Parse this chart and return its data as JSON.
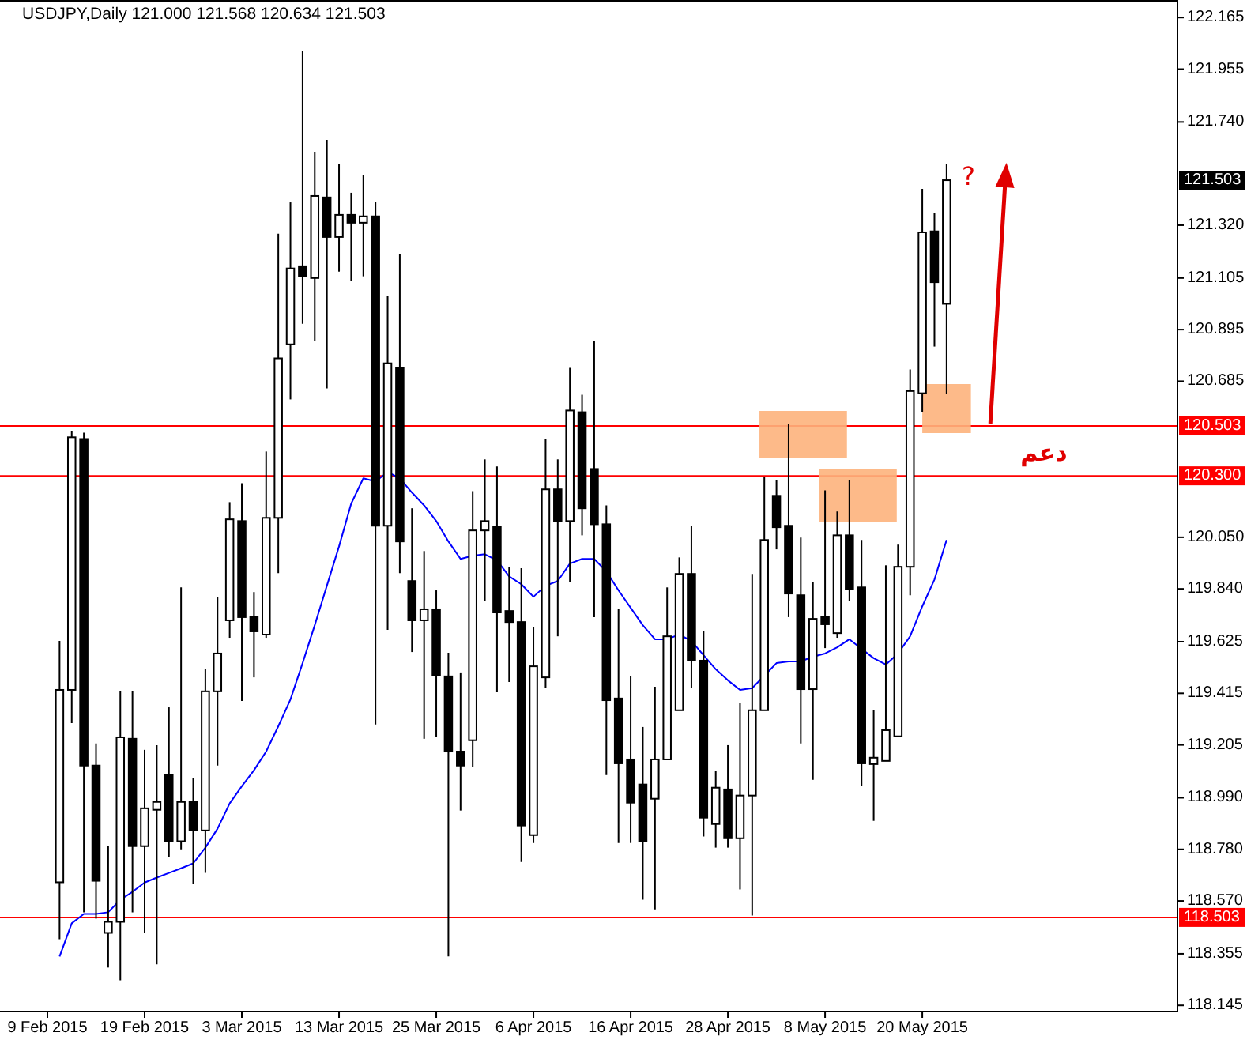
{
  "chart_data": {
    "type": "candlestick",
    "title": "USDJPY,Daily 121.000 121.568 120.634 121.503",
    "categories": [
      "9 Feb 2015",
      null,
      null,
      null,
      null,
      null,
      null,
      null,
      "19 Feb 2015",
      null,
      null,
      null,
      null,
      null,
      null,
      null,
      "3 Mar 2015",
      null,
      null,
      null,
      null,
      null,
      null,
      null,
      "13 Mar 2015",
      null,
      null,
      null,
      null,
      null,
      null,
      null,
      "25 Mar 2015",
      null,
      null,
      null,
      null,
      null,
      null,
      null,
      "6 Apr 2015",
      null,
      null,
      null,
      null,
      null,
      null,
      null,
      "16 Apr 2015",
      null,
      null,
      null,
      null,
      null,
      null,
      null,
      "28 Apr 2015",
      null,
      null,
      null,
      null,
      null,
      null,
      null,
      "8 May 2015",
      null,
      null,
      null,
      null,
      null,
      null,
      null,
      "20 May 2015",
      null,
      null
    ],
    "ohlc": [
      null,
      [
        118.646,
        119.628,
        118.414,
        119.429
      ],
      [
        119.429,
        120.482,
        119.294,
        120.457
      ],
      [
        120.45,
        120.476,
        118.524,
        119.121
      ],
      [
        119.121,
        119.211,
        118.498,
        118.652
      ],
      [
        118.44,
        118.793,
        118.299,
        118.485
      ],
      [
        118.485,
        119.423,
        118.247,
        119.236
      ],
      [
        119.23,
        119.423,
        118.524,
        118.793
      ],
      [
        118.793,
        119.185,
        118.44,
        118.947
      ],
      [
        118.941,
        119.204,
        118.312,
        118.973
      ],
      [
        119.082,
        119.358,
        118.748,
        118.813
      ],
      [
        118.813,
        119.846,
        118.78,
        118.973
      ],
      [
        118.973,
        119.069,
        118.639,
        118.857
      ],
      [
        118.857,
        119.513,
        118.684,
        119.423
      ],
      [
        119.423,
        119.808,
        119.121,
        119.577
      ],
      [
        119.712,
        120.193,
        119.641,
        120.123
      ],
      [
        120.116,
        120.27,
        119.384,
        119.725
      ],
      [
        119.725,
        119.827,
        119.48,
        119.667
      ],
      [
        119.654,
        120.399,
        119.641,
        120.129
      ],
      [
        120.129,
        121.285,
        119.904,
        120.778
      ],
      [
        120.835,
        121.413,
        120.611,
        121.144
      ],
      [
        121.153,
        122.03,
        120.919,
        121.112
      ],
      [
        121.105,
        121.619,
        120.848,
        121.439
      ],
      [
        121.433,
        121.667,
        120.656,
        121.272
      ],
      [
        121.272,
        121.568,
        121.131,
        121.362
      ],
      [
        121.362,
        121.452,
        121.092,
        121.33
      ],
      [
        121.33,
        121.523,
        121.112,
        121.356
      ],
      [
        121.356,
        121.413,
        119.288,
        120.097
      ],
      [
        120.097,
        121.034,
        119.673,
        120.758
      ],
      [
        120.739,
        121.202,
        119.904,
        120.033
      ],
      [
        119.872,
        120.168,
        119.583,
        119.712
      ],
      [
        119.712,
        119.994,
        119.23,
        119.757
      ],
      [
        119.757,
        119.834,
        119.236,
        119.487
      ],
      [
        119.484,
        119.58,
        118.344,
        119.178
      ],
      [
        119.178,
        119.5,
        118.938,
        119.121
      ],
      [
        119.224,
        120.238,
        119.114,
        120.078
      ],
      [
        120.078,
        120.367,
        119.789,
        120.116
      ],
      [
        120.094,
        120.338,
        119.419,
        119.744
      ],
      [
        119.75,
        119.93,
        119.461,
        119.705
      ],
      [
        119.705,
        119.924,
        118.729,
        118.877
      ],
      [
        118.838,
        119.686,
        118.806,
        119.525
      ],
      [
        119.48,
        120.45,
        119.436,
        120.245
      ],
      [
        120.245,
        120.367,
        119.647,
        120.116
      ],
      [
        120.116,
        120.739,
        119.866,
        120.566
      ],
      [
        120.559,
        120.63,
        120.058,
        120.168
      ],
      [
        120.328,
        120.848,
        119.725,
        120.103
      ],
      [
        120.103,
        120.18,
        119.082,
        119.387
      ],
      [
        119.394,
        119.757,
        118.806,
        119.13
      ],
      [
        119.146,
        119.484,
        118.806,
        118.97
      ],
      [
        119.044,
        119.278,
        118.575,
        118.813
      ],
      [
        118.986,
        119.442,
        118.536,
        119.146
      ],
      [
        119.146,
        119.846,
        119.146,
        119.647
      ],
      [
        119.346,
        119.968,
        119.346,
        119.901
      ],
      [
        119.901,
        120.097,
        119.436,
        119.551
      ],
      [
        119.548,
        119.667,
        118.832,
        118.909
      ],
      [
        118.883,
        119.098,
        118.787,
        119.031
      ],
      [
        119.024,
        119.204,
        118.787,
        118.825
      ],
      [
        118.825,
        119.375,
        118.617,
        118.999
      ],
      [
        118.999,
        119.901,
        118.511,
        119.346
      ],
      [
        119.346,
        120.296,
        119.346,
        120.039
      ],
      [
        120.219,
        120.283,
        120.001,
        120.091
      ],
      [
        120.097,
        120.511,
        119.725,
        119.821
      ],
      [
        119.814,
        120.049,
        119.211,
        119.432
      ],
      [
        119.432,
        119.869,
        119.063,
        119.718
      ],
      [
        119.725,
        120.241,
        119.599,
        119.696
      ],
      [
        119.66,
        120.155,
        119.641,
        120.058
      ],
      [
        120.058,
        120.283,
        119.789,
        119.84
      ],
      [
        119.846,
        120.039,
        119.037,
        119.13
      ],
      [
        119.127,
        119.346,
        118.896,
        119.153
      ],
      [
        119.14,
        119.936,
        119.14,
        119.265
      ],
      [
        119.24,
        120.02,
        119.24,
        119.93
      ],
      [
        119.93,
        120.733,
        119.814,
        120.645
      ],
      [
        120.636,
        121.468,
        120.561,
        121.291
      ],
      [
        121.295,
        121.371,
        120.826,
        121.088
      ],
      [
        121.0,
        121.568,
        120.634,
        121.503
      ]
    ],
    "series": [
      {
        "type": "line",
        "color": "#0000ff",
        "values": [
          null,
          118.344,
          118.479,
          118.517,
          118.517,
          118.524,
          118.575,
          118.607,
          118.645,
          118.665,
          118.684,
          118.703,
          118.723,
          118.787,
          118.864,
          118.967,
          119.037,
          119.102,
          119.178,
          119.281,
          119.39,
          119.538,
          119.692,
          119.853,
          120.013,
          120.187,
          120.29,
          120.277,
          120.315,
          120.29,
          120.232,
          120.18,
          120.116,
          120.033,
          119.962,
          119.975,
          119.981,
          119.956,
          119.891,
          119.859,
          119.808,
          119.853,
          119.872,
          119.943,
          119.962,
          119.962,
          119.911,
          119.834,
          119.763,
          119.692,
          119.635,
          119.635,
          119.654,
          119.628,
          119.57,
          119.513,
          119.468,
          119.429,
          119.436,
          119.487,
          119.538,
          119.545,
          119.545,
          119.564,
          119.577,
          119.602,
          119.635,
          119.596,
          119.558,
          119.532,
          119.577,
          119.647,
          119.769,
          119.878,
          120.039
        ]
      }
    ],
    "ylim": [
      118.12,
      122.23
    ],
    "yticks": [
      118.145,
      118.355,
      {
        "value": 118.57,
        "label": "118.570"
      },
      {
        "value": 118.78,
        "label": "118.780"
      },
      {
        "value": 118.99,
        "label": "118.990"
      },
      119.205,
      119.415,
      119.625,
      {
        "value": 119.84,
        "label": "119.840"
      },
      {
        "value": 120.05,
        "label": "120.050"
      },
      120.685,
      120.895,
      121.105,
      {
        "value": 121.32,
        "label": "121.320"
      },
      {
        "value": 121.74,
        "label": "121.740"
      },
      121.955,
      122.165
    ],
    "ref_lines": [
      {
        "axis": "y",
        "value": 120.503,
        "label": "120.503",
        "color": "#ff0000"
      },
      {
        "axis": "y",
        "value": 120.3,
        "label": "120.300",
        "color": "#ff0000"
      },
      {
        "axis": "y",
        "value": 118.503,
        "label": "118.503",
        "color": "#ff0000"
      }
    ],
    "annotations": [
      "دعم",
      "?",
      "121.503"
    ],
    "grid": false
  }
}
